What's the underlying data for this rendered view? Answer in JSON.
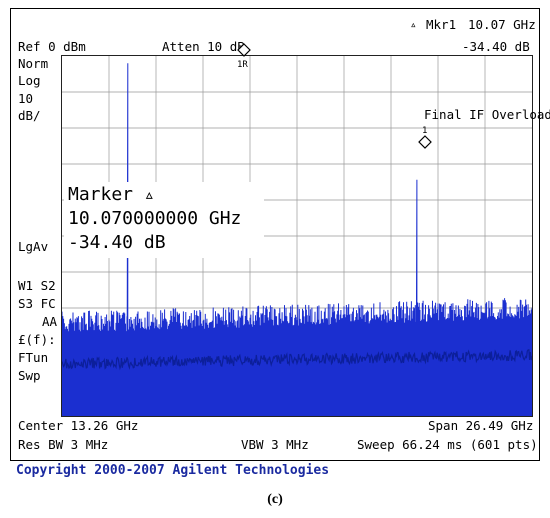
{
  "header": {
    "ref_level": "Ref 0 dBm",
    "attenuation": "Atten 10 dB",
    "marker_readout_label": "Mkr1",
    "marker_readout_freq": "10.07 GHz",
    "marker_readout_ampl": "-34.40 dB",
    "delta_symbol": "▵"
  },
  "left_panel": {
    "norm": "Norm",
    "log": "Log",
    "scale_value": "10",
    "scale_unit": "dB/",
    "lgav": "LgAv",
    "w1s2": "W1  S2",
    "s3fc": "S3  FC",
    "aa": "AA",
    "ef": "£(f):",
    "ftun": "FTun",
    "swp": "Swp"
  },
  "markers": {
    "marker_1r_label": "1R",
    "marker_1_label": "1",
    "final_if_overload": "Final IF Overload"
  },
  "marker_box": {
    "title": "Marker ▵",
    "frequency": "10.070000000 GHz",
    "amplitude": "-34.40 dB"
  },
  "bottom": {
    "center": "Center 13.26 GHz",
    "span": "Span 26.49 GHz",
    "res_bw": "Res BW 3 MHz",
    "vbw": "VBW 3 MHz",
    "sweep": "Sweep 66.24 ms (601 pts)"
  },
  "footer": {
    "copyright": "Copyright 2000-2007 Agilent Technologies"
  },
  "caption": "(c)",
  "colors": {
    "trace": "#1b2fd0",
    "grid": "#999999",
    "copyright": "#1a2aa0"
  },
  "trace": {
    "center_ghz": 13.26,
    "span_ghz": 26.49,
    "points": 601,
    "ref_dbm": 0,
    "db_per_div": 10,
    "divisions": 10,
    "noise_floor_top_db": -75,
    "noise_floor_bottom_db": -100,
    "peaks": [
      {
        "freq_ghz": 3.72,
        "ampl_db": -2
      },
      {
        "freq_ghz": 20.0,
        "ampl_db": -34.4
      }
    ]
  }
}
